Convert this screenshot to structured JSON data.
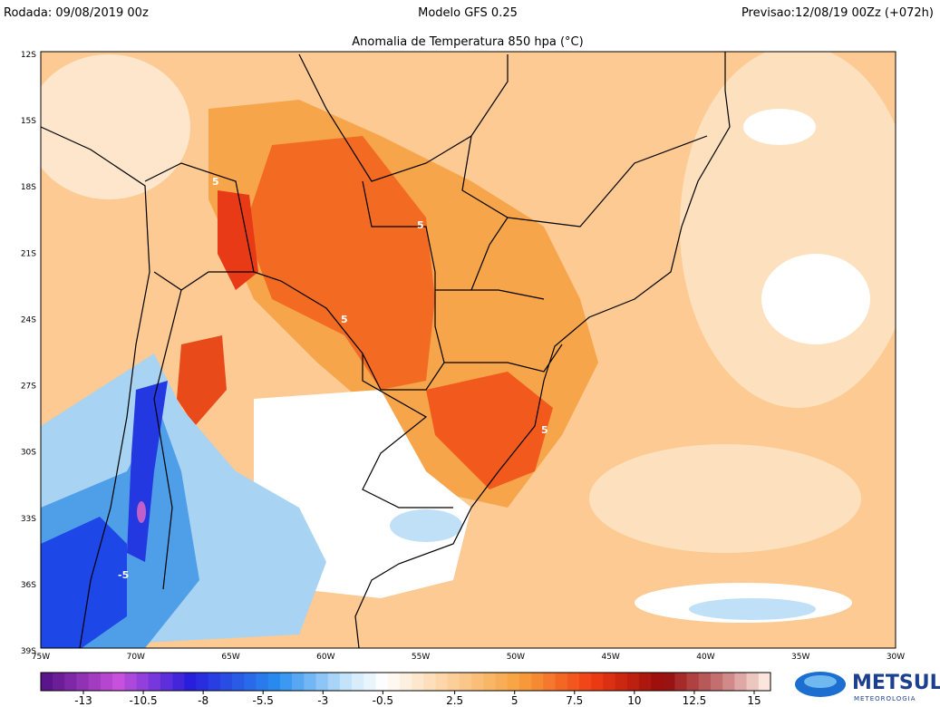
{
  "header": {
    "run": "Rodada: 09/08/2019 00z",
    "model": "Modelo GFS 0.25",
    "forecast": "Previsao:12/08/19 00Zz (+072h)"
  },
  "map": {
    "title": "Anomalia de Temperatura 850 hpa (°C)",
    "lat_labels": [
      "12S",
      "15S",
      "18S",
      "21S",
      "24S",
      "27S",
      "30S",
      "33S",
      "36S",
      "39S"
    ],
    "lon_labels": [
      "75W",
      "70W",
      "65W",
      "60W",
      "55W",
      "50W",
      "45W",
      "40W",
      "35W",
      "30W"
    ],
    "contour_labels": [
      "5",
      "5",
      "5",
      "5",
      "-5"
    ]
  },
  "legend": {
    "ticks": [
      -13,
      -10.5,
      -8,
      -5.5,
      -3,
      -0.5,
      2.5,
      5,
      7.5,
      10,
      12.5,
      15
    ]
  },
  "logo": {
    "name": "METSUL",
    "tagline": "METEOROLOGIA"
  }
}
